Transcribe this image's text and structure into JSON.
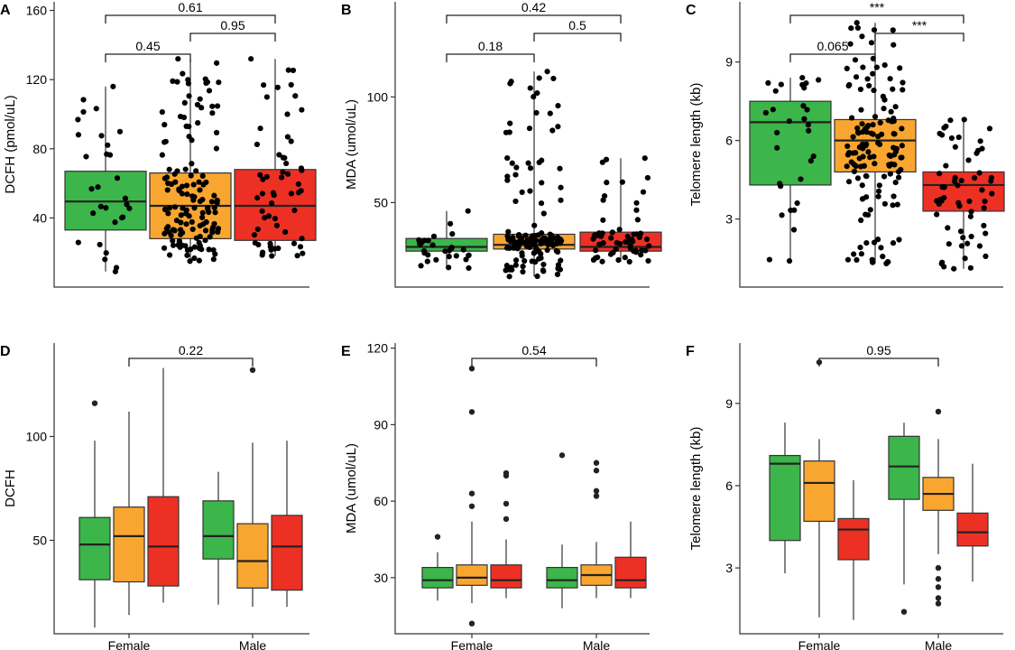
{
  "figure": {
    "colors": {
      "low": "#3cb54a",
      "mid": "#f9a631",
      "high": "#ed3024",
      "point": "#000000",
      "outlier": "#222222"
    }
  },
  "chart_data": [
    {
      "panel": "A",
      "type": "box",
      "ylabel": "DCFH (pmol/uL)",
      "ylim": [
        0,
        165
      ],
      "yticks": [
        40,
        80,
        120,
        160
      ],
      "categories": [
        "",
        "",
        ""
      ],
      "boxes": [
        {
          "color": "low",
          "q1": 33,
          "median": 49.5,
          "q3": 67,
          "whisker_low": 9,
          "whisker_high": 116,
          "n_points": 30
        },
        {
          "color": "mid",
          "q1": 28,
          "median": 47,
          "q3": 66,
          "whisker_low": 15,
          "whisker_high": 132,
          "n_points": 140
        },
        {
          "color": "high",
          "q1": 27,
          "median": 47,
          "q3": 68,
          "whisker_low": 18,
          "whisker_high": 132,
          "n_points": 60
        }
      ],
      "comparisons": [
        {
          "groups": [
            0,
            1
          ],
          "label": "0.45",
          "level": 1
        },
        {
          "groups": [
            1,
            2
          ],
          "label": "0.95",
          "level": 2
        },
        {
          "groups": [
            0,
            2
          ],
          "label": "0.61",
          "level": 3
        }
      ]
    },
    {
      "panel": "B",
      "type": "box",
      "ylabel": "MDA (umol/uL)",
      "ylim": [
        10,
        145
      ],
      "yticks": [
        50,
        100
      ],
      "categories": [
        "",
        "",
        ""
      ],
      "boxes": [
        {
          "color": "low",
          "q1": 27,
          "median": 29,
          "q3": 33,
          "whisker_low": 19,
          "whisker_high": 46,
          "n_points": 30
        },
        {
          "color": "mid",
          "q1": 28,
          "median": 30,
          "q3": 35,
          "whisker_low": 15,
          "whisker_high": 112,
          "n_points": 140
        },
        {
          "color": "high",
          "q1": 27,
          "median": 29,
          "q3": 36,
          "whisker_low": 22,
          "whisker_high": 71,
          "n_points": 60
        }
      ],
      "comparisons": [
        {
          "groups": [
            0,
            1
          ],
          "label": "0.18",
          "level": 1
        },
        {
          "groups": [
            1,
            2
          ],
          "label": "0.5",
          "level": 2
        },
        {
          "groups": [
            0,
            2
          ],
          "label": "0.42",
          "level": 3
        }
      ]
    },
    {
      "panel": "C",
      "type": "box",
      "ylabel": "Telomere length (kb)",
      "ylim": [
        0.4,
        11.3
      ],
      "yticks": [
        3,
        6,
        9
      ],
      "categories": [
        "",
        "",
        ""
      ],
      "boxes": [
        {
          "color": "low",
          "q1": 4.3,
          "median": 6.7,
          "q3": 7.5,
          "whisker_low": 1.4,
          "whisker_high": 8.4,
          "n_points": 30
        },
        {
          "color": "mid",
          "q1": 4.8,
          "median": 6.0,
          "q3": 6.8,
          "whisker_low": 1.3,
          "whisker_high": 10.5,
          "n_points": 140
        },
        {
          "color": "high",
          "q1": 3.3,
          "median": 4.3,
          "q3": 4.8,
          "whisker_low": 1.1,
          "whisker_high": 6.8,
          "n_points": 60
        }
      ],
      "comparisons": [
        {
          "groups": [
            0,
            1
          ],
          "label": "0.065",
          "level": 1
        },
        {
          "groups": [
            1,
            2
          ],
          "label": "***",
          "level": 2
        },
        {
          "groups": [
            0,
            2
          ],
          "label": "***",
          "level": 3
        }
      ]
    },
    {
      "panel": "D",
      "type": "grouped-box",
      "ylabel": "DCFH",
      "ylim": [
        5,
        145
      ],
      "yticks": [
        50,
        100
      ],
      "categories": [
        "Female",
        "Male"
      ],
      "boxes": [
        {
          "group": 0,
          "color": "low",
          "q1": 31,
          "median": 48,
          "q3": 61,
          "whisker_low": 8,
          "whisker_high": 98,
          "outliers": [
            116
          ]
        },
        {
          "group": 0,
          "color": "mid",
          "q1": 30,
          "median": 52,
          "q3": 66,
          "whisker_low": 14,
          "whisker_high": 112,
          "outliers": []
        },
        {
          "group": 0,
          "color": "high",
          "q1": 28,
          "median": 47,
          "q3": 71,
          "whisker_low": 20,
          "whisker_high": 133,
          "outliers": []
        },
        {
          "group": 1,
          "color": "low",
          "q1": 41,
          "median": 52,
          "q3": 69,
          "whisker_low": 19,
          "whisker_high": 83,
          "outliers": []
        },
        {
          "group": 1,
          "color": "mid",
          "q1": 27,
          "median": 40,
          "q3": 58,
          "whisker_low": 18,
          "whisker_high": 97,
          "outliers": [
            132
          ]
        },
        {
          "group": 1,
          "color": "high",
          "q1": 26,
          "median": 47,
          "q3": 62,
          "whisker_low": 18,
          "whisker_high": 98,
          "outliers": []
        }
      ],
      "comparisons": [
        {
          "groups": [
            0,
            1
          ],
          "label": "0.22",
          "level": 1
        }
      ]
    },
    {
      "panel": "E",
      "type": "grouped-box",
      "ylabel": "MDA (umol/uL)",
      "ylim": [
        8,
        122
      ],
      "yticks": [
        30,
        60,
        90,
        120
      ],
      "categories": [
        "Female",
        "Male"
      ],
      "boxes": [
        {
          "group": 0,
          "color": "low",
          "q1": 26,
          "median": 29,
          "q3": 34,
          "whisker_low": 21,
          "whisker_high": 40,
          "outliers": [
            46
          ]
        },
        {
          "group": 0,
          "color": "mid",
          "q1": 27,
          "median": 30,
          "q3": 35,
          "whisker_low": 20,
          "whisker_high": 52,
          "outliers": [
            58,
            63,
            95,
            112,
            12
          ]
        },
        {
          "group": 0,
          "color": "high",
          "q1": 26,
          "median": 29,
          "q3": 35,
          "whisker_low": 22,
          "whisker_high": 45,
          "outliers": [
            53,
            59,
            70,
            71
          ]
        },
        {
          "group": 1,
          "color": "low",
          "q1": 26,
          "median": 29,
          "q3": 34,
          "whisker_low": 18,
          "whisker_high": 43,
          "outliers": [
            78
          ]
        },
        {
          "group": 1,
          "color": "mid",
          "q1": 27,
          "median": 31,
          "q3": 35,
          "whisker_low": 22,
          "whisker_high": 44,
          "outliers": [
            62,
            64,
            72,
            75
          ]
        },
        {
          "group": 1,
          "color": "high",
          "q1": 26,
          "median": 29,
          "q3": 38,
          "whisker_low": 22,
          "whisker_high": 52,
          "outliers": []
        }
      ],
      "comparisons": [
        {
          "groups": [
            0,
            1
          ],
          "label": "0.54",
          "level": 1
        }
      ]
    },
    {
      "panel": "F",
      "type": "grouped-box",
      "ylabel": "Telomere length (kb)",
      "ylim": [
        0.6,
        11.2
      ],
      "yticks": [
        3,
        6,
        9
      ],
      "categories": [
        "Female",
        "Male"
      ],
      "boxes": [
        {
          "group": 0,
          "color": "low",
          "q1": 4.0,
          "median": 6.8,
          "q3": 7.1,
          "whisker_low": 2.8,
          "whisker_high": 8.3,
          "outliers": []
        },
        {
          "group": 0,
          "color": "mid",
          "q1": 4.7,
          "median": 6.1,
          "q3": 6.9,
          "whisker_low": 1.2,
          "whisker_high": 7.7,
          "outliers": [
            10.5
          ]
        },
        {
          "group": 0,
          "color": "high",
          "q1": 3.3,
          "median": 4.4,
          "q3": 4.8,
          "whisker_low": 1.1,
          "whisker_high": 6.2,
          "outliers": []
        },
        {
          "group": 1,
          "color": "low",
          "q1": 5.5,
          "median": 6.7,
          "q3": 7.8,
          "whisker_low": 2.4,
          "whisker_high": 8.3,
          "outliers": [
            1.4
          ]
        },
        {
          "group": 1,
          "color": "mid",
          "q1": 5.1,
          "median": 5.7,
          "q3": 6.3,
          "whisker_low": 3.5,
          "whisker_high": 7.7,
          "outliers": [
            8.7,
            3.0,
            2.6,
            2.3,
            1.9,
            1.7
          ]
        },
        {
          "group": 1,
          "color": "high",
          "q1": 3.8,
          "median": 4.3,
          "q3": 5.0,
          "whisker_low": 2.5,
          "whisker_high": 6.8,
          "outliers": []
        }
      ],
      "comparisons": [
        {
          "groups": [
            0,
            1
          ],
          "label": "0.95",
          "level": 1
        }
      ]
    }
  ]
}
